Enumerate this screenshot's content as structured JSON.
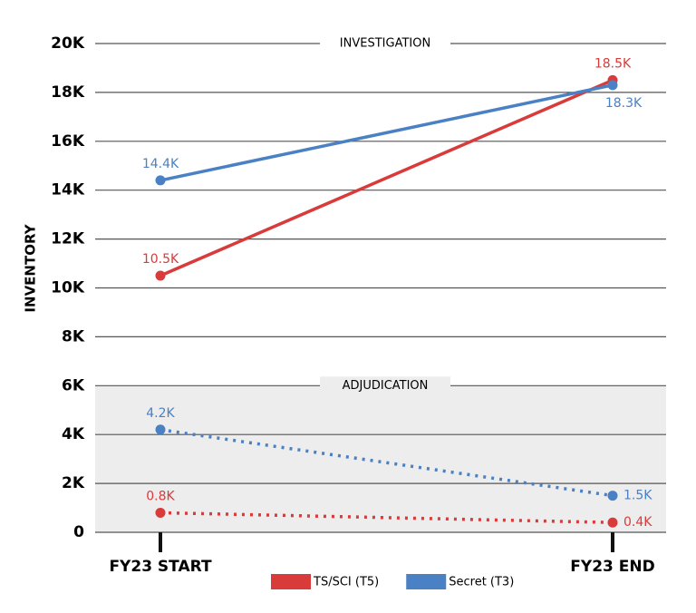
{
  "chart_data": {
    "type": "line",
    "ylabel": "INVENTORY",
    "categories": [
      "FY23 START",
      "FY23 END"
    ],
    "ylim": [
      0,
      20000
    ],
    "yticks": [
      0,
      {
        "value": 2000,
        "label": "2K"
      },
      {
        "value": 4000,
        "label": "4K"
      },
      {
        "value": 6000,
        "label": "6K"
      },
      {
        "value": 8000,
        "label": "8K"
      },
      {
        "value": 10000,
        "label": "10K"
      },
      {
        "value": 12000,
        "label": "12K"
      },
      {
        "value": 14000,
        "label": "14K"
      },
      {
        "value": 16000,
        "label": "16K"
      },
      {
        "value": 18000,
        "label": "18K"
      },
      {
        "value": 20000,
        "label": "20K"
      }
    ],
    "grid": true,
    "series": [
      {
        "name": "TS/SCI (T5)",
        "color": "#d93a3a"
      },
      {
        "name": "Secret (T3)",
        "color": "#4a80c4"
      }
    ],
    "panels": [
      {
        "label": "INVESTIGATION",
        "line_style": "solid",
        "values": [
          [
            10500,
            18500
          ],
          [
            14400,
            18300
          ]
        ],
        "value_labels": [
          [
            "10.5K",
            "18.5K"
          ],
          [
            "14.4K",
            "18.3K"
          ]
        ]
      },
      {
        "label": "ADJUDICATION",
        "line_style": "dotted",
        "band": [
          0,
          6000
        ],
        "band_color": "#ededed",
        "values": [
          [
            800,
            400
          ],
          [
            4200,
            1500
          ]
        ],
        "value_labels": [
          [
            "0.8K",
            "0.4K"
          ],
          [
            "4.2K",
            "1.5K"
          ]
        ]
      }
    ]
  }
}
